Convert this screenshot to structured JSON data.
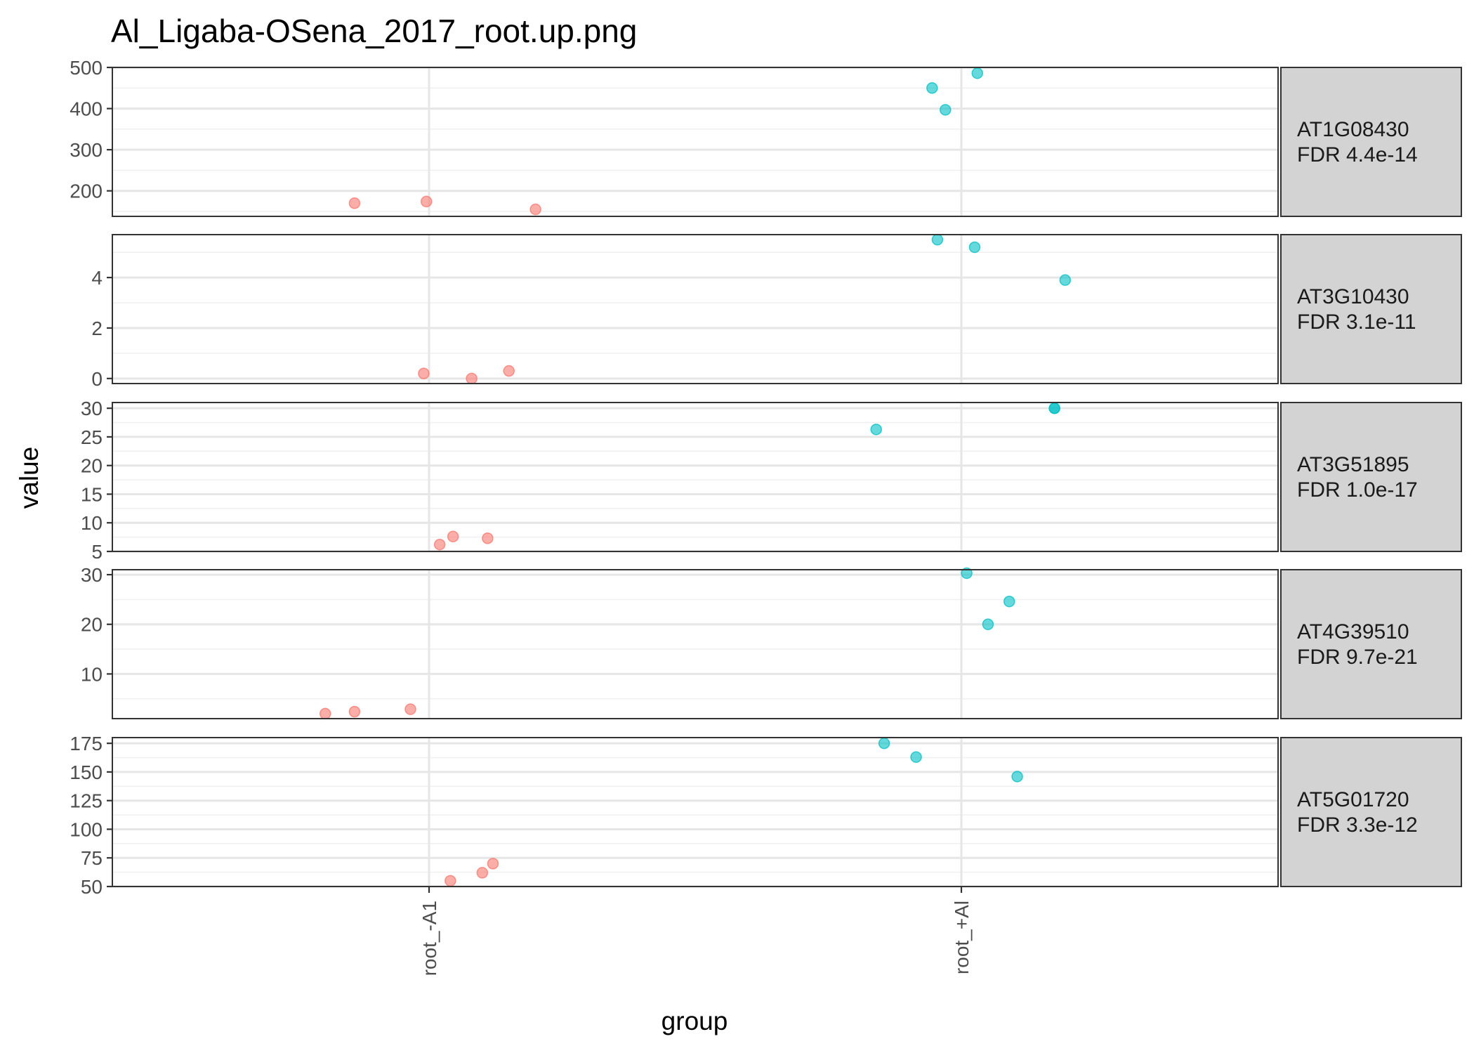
{
  "title": "Al_Ligaba-OSena_2017_root.up.png",
  "xlabel": "group",
  "ylabel": "value",
  "colors": {
    "root_-A1": "#F8766D",
    "root_+Al": "#00BFC4"
  },
  "chart_data": {
    "type": "scatter",
    "title": "Al_Ligaba-OSena_2017_root.up.png",
    "xlabel": "group",
    "ylabel": "value",
    "categories": [
      "root_-A1",
      "root_+Al"
    ],
    "grid": true,
    "facets": [
      {
        "gene": "AT1G08430",
        "fdr": "FDR 4.4e-14",
        "ylim": [
          138,
          500
        ],
        "yticks": [
          200,
          300,
          400,
          500
        ],
        "points": [
          {
            "group": "root_-A1",
            "jitter": -0.28,
            "value": 170
          },
          {
            "group": "root_-A1",
            "jitter": -0.01,
            "value": 174
          },
          {
            "group": "root_-A1",
            "jitter": 0.4,
            "value": 155
          },
          {
            "group": "root_+Al",
            "jitter": -0.11,
            "value": 450
          },
          {
            "group": "root_+Al",
            "jitter": -0.06,
            "value": 397
          },
          {
            "group": "root_+Al",
            "jitter": 0.06,
            "value": 486
          }
        ]
      },
      {
        "gene": "AT3G10430",
        "fdr": "FDR 3.1e-11",
        "ylim": [
          -0.2,
          5.7
        ],
        "yticks": [
          0,
          2,
          4
        ],
        "points": [
          {
            "group": "root_-A1",
            "jitter": -0.02,
            "value": 0.2
          },
          {
            "group": "root_-A1",
            "jitter": 0.16,
            "value": 0.0
          },
          {
            "group": "root_-A1",
            "jitter": 0.3,
            "value": 0.3
          },
          {
            "group": "root_+Al",
            "jitter": -0.09,
            "value": 5.5
          },
          {
            "group": "root_+Al",
            "jitter": 0.05,
            "value": 5.2
          },
          {
            "group": "root_+Al",
            "jitter": 0.39,
            "value": 3.9
          }
        ]
      },
      {
        "gene": "AT3G51895",
        "fdr": "FDR 1.0e-17",
        "ylim": [
          5,
          31
        ],
        "yticks": [
          5,
          10,
          15,
          20,
          25,
          30
        ],
        "points": [
          {
            "group": "root_-A1",
            "jitter": 0.04,
            "value": 6.2
          },
          {
            "group": "root_-A1",
            "jitter": 0.09,
            "value": 7.6
          },
          {
            "group": "root_-A1",
            "jitter": 0.22,
            "value": 7.3
          },
          {
            "group": "root_+Al",
            "jitter": -0.32,
            "value": 26.3
          },
          {
            "group": "root_+Al",
            "jitter": 0.35,
            "value": 30.0
          },
          {
            "group": "root_+Al",
            "jitter": 0.35,
            "value": 30.0
          }
        ]
      },
      {
        "gene": "AT4G39510",
        "fdr": "FDR 9.7e-21",
        "ylim": [
          1,
          31
        ],
        "yticks": [
          10,
          20,
          30
        ],
        "points": [
          {
            "group": "root_-A1",
            "jitter": -0.39,
            "value": 2.0
          },
          {
            "group": "root_-A1",
            "jitter": -0.28,
            "value": 2.4
          },
          {
            "group": "root_-A1",
            "jitter": -0.07,
            "value": 2.9
          },
          {
            "group": "root_+Al",
            "jitter": 0.02,
            "value": 30.3
          },
          {
            "group": "root_+Al",
            "jitter": 0.1,
            "value": 20.0
          },
          {
            "group": "root_+Al",
            "jitter": 0.18,
            "value": 24.6
          }
        ]
      },
      {
        "gene": "AT5G01720",
        "fdr": "FDR 3.3e-12",
        "ylim": [
          50,
          180
        ],
        "yticks": [
          50,
          75,
          100,
          125,
          150,
          175
        ],
        "points": [
          {
            "group": "root_-A1",
            "jitter": 0.08,
            "value": 55
          },
          {
            "group": "root_-A1",
            "jitter": 0.2,
            "value": 62
          },
          {
            "group": "root_-A1",
            "jitter": 0.24,
            "value": 70
          },
          {
            "group": "root_+Al",
            "jitter": -0.29,
            "value": 175
          },
          {
            "group": "root_+Al",
            "jitter": -0.17,
            "value": 163
          },
          {
            "group": "root_+Al",
            "jitter": 0.21,
            "value": 146
          }
        ]
      }
    ]
  }
}
